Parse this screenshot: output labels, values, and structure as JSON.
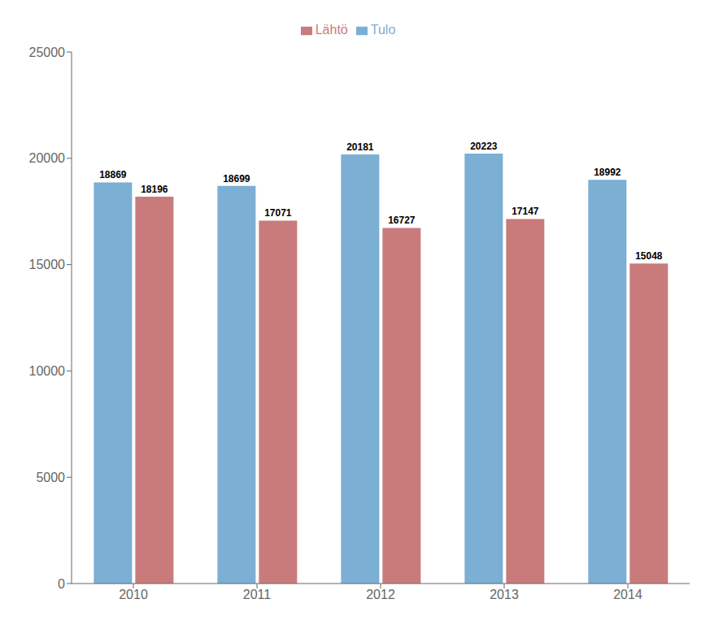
{
  "chart_data": {
    "type": "bar",
    "categories": [
      "2010",
      "2011",
      "2012",
      "2013",
      "2014"
    ],
    "series": [
      {
        "name": "Tulo",
        "color": "#7BAFD4",
        "values": [
          18869,
          18699,
          20181,
          20223,
          18992
        ]
      },
      {
        "name": "Lähtö",
        "color": "#C97B7B",
        "values": [
          18196,
          17071,
          16727,
          17147,
          15048
        ]
      }
    ],
    "ylim": [
      0,
      25000
    ],
    "yticks": [
      0,
      5000,
      10000,
      15000,
      20000,
      25000
    ],
    "grid": false,
    "legend": "top",
    "data_labels": true
  }
}
